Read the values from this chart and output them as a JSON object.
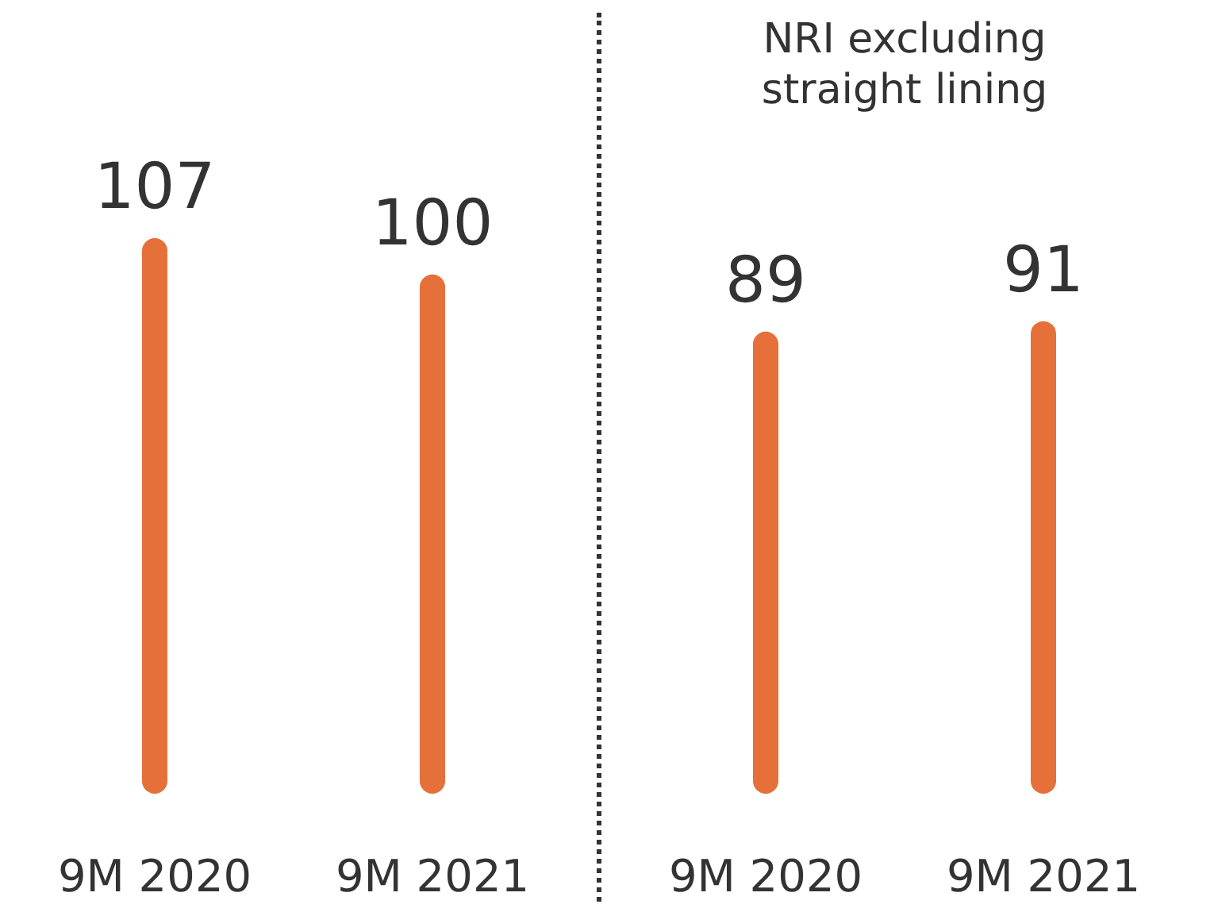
{
  "chart_data": [
    {
      "type": "bar",
      "categories": [
        "9M 2020",
        "9M 2021"
      ],
      "values": [
        107,
        100
      ],
      "color": "#e5703a",
      "data_labels": true
    },
    {
      "type": "bar",
      "title": "NRI excluding\nstraight lining",
      "categories": [
        "9M 2020",
        "9M 2021"
      ],
      "values": [
        89,
        91
      ],
      "color": "#e5703a",
      "data_labels": true
    }
  ]
}
